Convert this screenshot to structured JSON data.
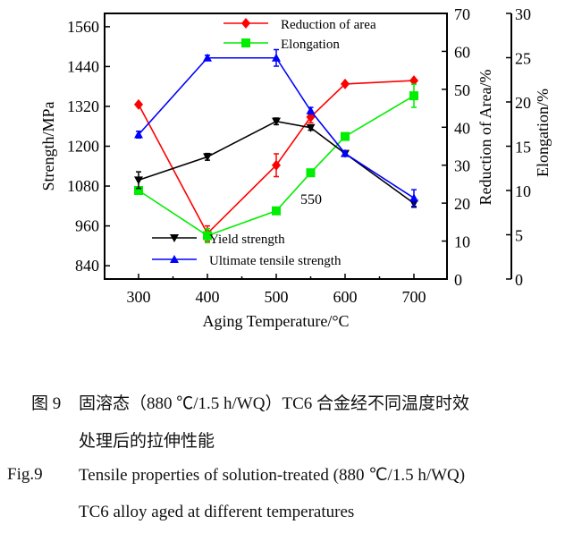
{
  "chart_data": {
    "type": "line",
    "x": [
      300,
      400,
      500,
      550,
      600,
      700
    ],
    "xlabel": "Aging Temperature/°C",
    "x_ticks": [
      "300",
      "400",
      "500",
      "600",
      "700"
    ],
    "annotation": "550",
    "axes": {
      "left": {
        "label": "Strength/MPa",
        "range": [
          800,
          1600
        ],
        "ticks": [
          "840",
          "960",
          "1080",
          "1200",
          "1320",
          "1440",
          "1560"
        ]
      },
      "right1": {
        "label": "Reduction of Area/%",
        "range": [
          0,
          70
        ],
        "ticks": [
          "0",
          "10",
          "20",
          "30",
          "40",
          "50",
          "60",
          "70"
        ]
      },
      "right2": {
        "label": "Elongation/%",
        "range": [
          0,
          30
        ],
        "ticks": [
          "0",
          "5",
          "10",
          "15",
          "20",
          "25",
          "30"
        ]
      }
    },
    "series": [
      {
        "name": "Reduction of area",
        "axis": "right1",
        "color": "#ff0000",
        "marker": "diamond",
        "values": [
          46,
          12,
          30,
          42.7,
          51.4,
          52.3
        ],
        "errors": [
          0,
          2,
          3,
          1.5,
          0,
          0
        ]
      },
      {
        "name": "Elongation",
        "axis": "right2",
        "color": "#00ee00",
        "marker": "square",
        "values": [
          10,
          4.9,
          7.7,
          12,
          16.1,
          20.7
        ],
        "errors": [
          0,
          0.8,
          0,
          0,
          0,
          1.3
        ]
      },
      {
        "name": "Yield strength",
        "axis": "left",
        "color": "#000000",
        "marker": "triangle-down",
        "values": [
          1098,
          1168,
          1275,
          1256,
          1178,
          1028
        ],
        "errors": [
          25,
          10,
          10,
          8,
          6,
          12
        ]
      },
      {
        "name": "Ultimate tensile strength",
        "axis": "left",
        "color": "#0000ff",
        "marker": "triangle-up",
        "values": [
          1235,
          1466,
          1466,
          1307,
          1178,
          1044
        ],
        "errors": [
          10,
          8,
          25,
          10,
          8,
          25
        ]
      }
    ],
    "legend": "top-right and bottom-center",
    "grid": false
  },
  "caption": {
    "cn_label": "图 9",
    "cn_line1": "固溶态（880 ℃/1.5 h/WQ）TC6 合金经不同温度时效",
    "cn_line2": "处理后的拉伸性能",
    "en_label": "Fig.9",
    "en_line1": "Tensile properties of solution-treated (880 ℃/1.5 h/WQ)",
    "en_line2": "TC6 alloy aged at different temperatures"
  }
}
